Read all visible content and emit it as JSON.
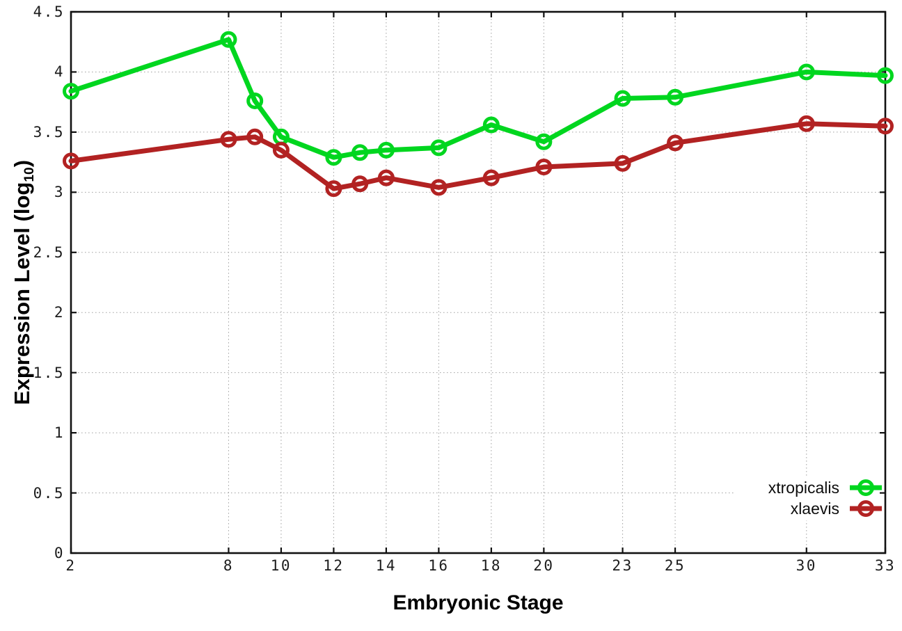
{
  "chart_data": {
    "type": "line",
    "title": "",
    "xlabel": "Embryonic Stage",
    "ylabel_prefix": "Expression Level (log",
    "ylabel_sub": "10",
    "ylabel_suffix": ")",
    "x": [
      2,
      8,
      9,
      10,
      12,
      13,
      14,
      16,
      18,
      20,
      23,
      25,
      30,
      33
    ],
    "series": [
      {
        "name": "xtropicalis",
        "color": "#00d61f",
        "values": [
          3.84,
          4.27,
          3.76,
          3.46,
          3.29,
          3.33,
          3.35,
          3.37,
          3.56,
          3.42,
          3.78,
          3.79,
          4.0,
          3.97
        ]
      },
      {
        "name": "xlaevis",
        "color": "#b22222",
        "values": [
          3.26,
          3.44,
          3.46,
          3.35,
          3.03,
          3.07,
          3.12,
          3.04,
          3.12,
          3.21,
          3.24,
          3.41,
          3.57,
          3.55
        ]
      }
    ],
    "xlim": [
      2,
      33
    ],
    "ylim": [
      0,
      4.5
    ],
    "xticks": [
      2,
      8,
      10,
      12,
      14,
      16,
      18,
      20,
      23,
      25,
      30,
      33
    ],
    "xtick_labels": [
      "2",
      "8",
      "10",
      "12",
      "14",
      "16",
      "18",
      "20",
      "23",
      "25",
      "30",
      "33"
    ],
    "yticks": [
      0,
      0.5,
      1,
      1.5,
      2,
      2.5,
      3,
      3.5,
      4,
      4.5
    ],
    "ytick_labels": [
      "0",
      "0.5",
      "1",
      "1.5",
      "2",
      "2.5",
      "3",
      "3.5",
      "4",
      "4.5"
    ],
    "grid": true,
    "grid_style": "dotted",
    "grid_color": "#9f9f9f",
    "border_color": "#111111",
    "background_color": "#ffffff",
    "legend_position": "inside-bottom-right",
    "marker": "open-circle",
    "line_width": 7,
    "marker_radius": 9.5,
    "marker_stroke": 5
  }
}
